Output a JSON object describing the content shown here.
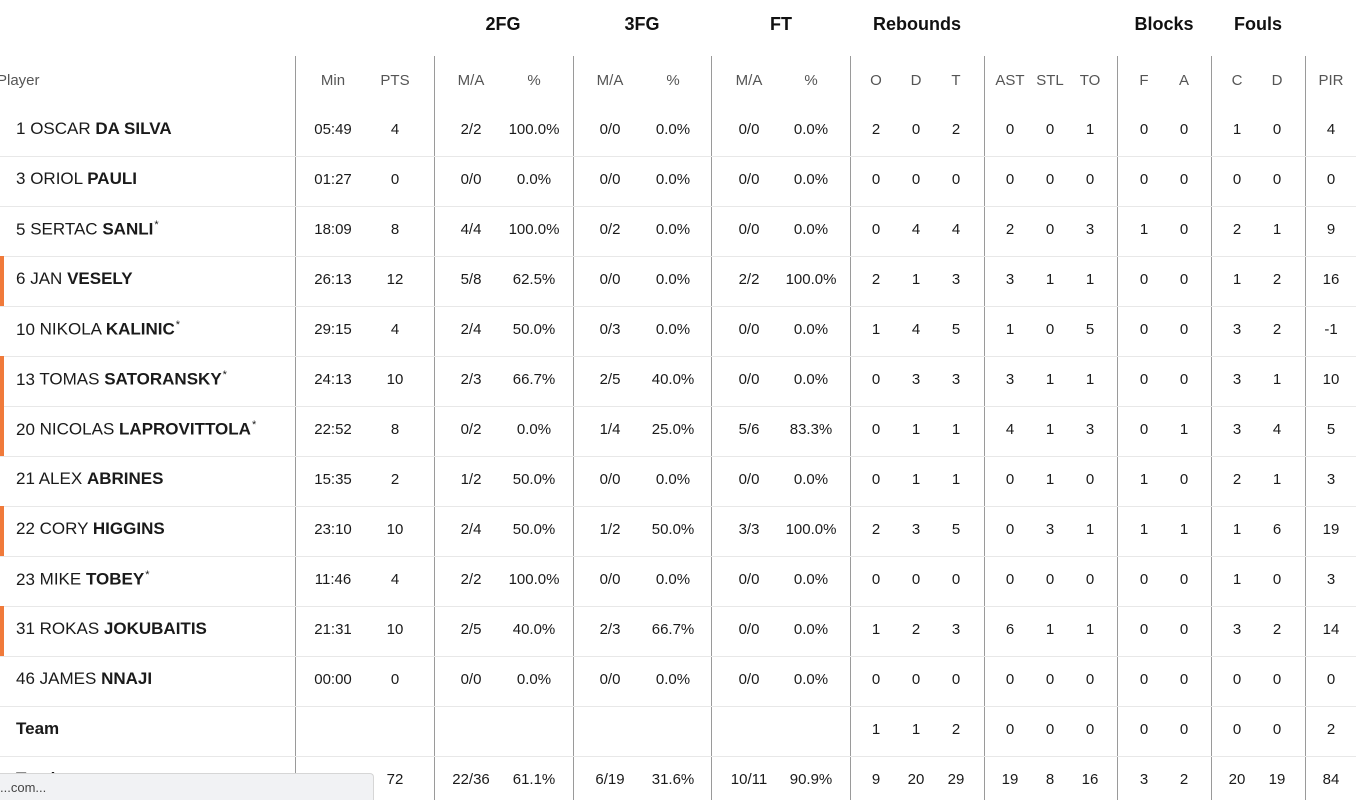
{
  "groups": [
    {
      "id": "2fg",
      "label": "2FG"
    },
    {
      "id": "3fg",
      "label": "3FG"
    },
    {
      "id": "ft",
      "label": "FT"
    },
    {
      "id": "rebounds",
      "label": "Rebounds"
    },
    {
      "id": "blocks",
      "label": "Blocks"
    },
    {
      "id": "fouls",
      "label": "Fouls"
    }
  ],
  "columns": [
    {
      "id": "player",
      "label": "Player"
    },
    {
      "id": "min",
      "label": "Min"
    },
    {
      "id": "pts",
      "label": "PTS"
    },
    {
      "id": "fg2_ma",
      "label": "M/A"
    },
    {
      "id": "fg2_pct",
      "label": "%"
    },
    {
      "id": "fg3_ma",
      "label": "M/A"
    },
    {
      "id": "fg3_pct",
      "label": "%"
    },
    {
      "id": "ft_ma",
      "label": "M/A"
    },
    {
      "id": "ft_pct",
      "label": "%"
    },
    {
      "id": "reb_o",
      "label": "O"
    },
    {
      "id": "reb_d",
      "label": "D"
    },
    {
      "id": "reb_t",
      "label": "T"
    },
    {
      "id": "ast",
      "label": "AST"
    },
    {
      "id": "stl",
      "label": "STL"
    },
    {
      "id": "to",
      "label": "TO"
    },
    {
      "id": "blk_f",
      "label": "F"
    },
    {
      "id": "blk_a",
      "label": "A"
    },
    {
      "id": "foul_c",
      "label": "C"
    },
    {
      "id": "foul_d",
      "label": "D"
    },
    {
      "id": "pir",
      "label": "PIR"
    }
  ],
  "players": [
    {
      "num": "1",
      "first": "OSCAR",
      "last": "DA SILVA",
      "starter": false,
      "highlight": false,
      "stats": [
        "05:49",
        "4",
        "2/2",
        "100.0%",
        "0/0",
        "0.0%",
        "0/0",
        "0.0%",
        "2",
        "0",
        "2",
        "0",
        "0",
        "1",
        "0",
        "0",
        "1",
        "0",
        "4"
      ]
    },
    {
      "num": "3",
      "first": "ORIOL",
      "last": "PAULI",
      "starter": false,
      "highlight": false,
      "stats": [
        "01:27",
        "0",
        "0/0",
        "0.0%",
        "0/0",
        "0.0%",
        "0/0",
        "0.0%",
        "0",
        "0",
        "0",
        "0",
        "0",
        "0",
        "0",
        "0",
        "0",
        "0",
        "0"
      ]
    },
    {
      "num": "5",
      "first": "SERTAC",
      "last": "SANLI",
      "starter": true,
      "highlight": false,
      "stats": [
        "18:09",
        "8",
        "4/4",
        "100.0%",
        "0/2",
        "0.0%",
        "0/0",
        "0.0%",
        "0",
        "4",
        "4",
        "2",
        "0",
        "3",
        "1",
        "0",
        "2",
        "1",
        "9"
      ]
    },
    {
      "num": "6",
      "first": "JAN",
      "last": "VESELY",
      "starter": false,
      "highlight": true,
      "stats": [
        "26:13",
        "12",
        "5/8",
        "62.5%",
        "0/0",
        "0.0%",
        "2/2",
        "100.0%",
        "2",
        "1",
        "3",
        "3",
        "1",
        "1",
        "0",
        "0",
        "1",
        "2",
        "16"
      ]
    },
    {
      "num": "10",
      "first": "NIKOLA",
      "last": "KALINIC",
      "starter": true,
      "highlight": false,
      "stats": [
        "29:15",
        "4",
        "2/4",
        "50.0%",
        "0/3",
        "0.0%",
        "0/0",
        "0.0%",
        "1",
        "4",
        "5",
        "1",
        "0",
        "5",
        "0",
        "0",
        "3",
        "2",
        "-1"
      ]
    },
    {
      "num": "13",
      "first": "TOMAS",
      "last": "SATORANSKY",
      "starter": true,
      "highlight": true,
      "stats": [
        "24:13",
        "10",
        "2/3",
        "66.7%",
        "2/5",
        "40.0%",
        "0/0",
        "0.0%",
        "0",
        "3",
        "3",
        "3",
        "1",
        "1",
        "0",
        "0",
        "3",
        "1",
        "10"
      ]
    },
    {
      "num": "20",
      "first": "NICOLAS",
      "last": "LAPROVITTOLA",
      "starter": true,
      "highlight": true,
      "stats": [
        "22:52",
        "8",
        "0/2",
        "0.0%",
        "1/4",
        "25.0%",
        "5/6",
        "83.3%",
        "0",
        "1",
        "1",
        "4",
        "1",
        "3",
        "0",
        "1",
        "3",
        "4",
        "5"
      ]
    },
    {
      "num": "21",
      "first": "ALEX",
      "last": "ABRINES",
      "starter": false,
      "highlight": false,
      "stats": [
        "15:35",
        "2",
        "1/2",
        "50.0%",
        "0/0",
        "0.0%",
        "0/0",
        "0.0%",
        "0",
        "1",
        "1",
        "0",
        "1",
        "0",
        "1",
        "0",
        "2",
        "1",
        "3"
      ]
    },
    {
      "num": "22",
      "first": "CORY",
      "last": "HIGGINS",
      "starter": false,
      "highlight": true,
      "stats": [
        "23:10",
        "10",
        "2/4",
        "50.0%",
        "1/2",
        "50.0%",
        "3/3",
        "100.0%",
        "2",
        "3",
        "5",
        "0",
        "3",
        "1",
        "1",
        "1",
        "1",
        "6",
        "19"
      ]
    },
    {
      "num": "23",
      "first": "MIKE",
      "last": "TOBEY",
      "starter": true,
      "highlight": false,
      "stats": [
        "11:46",
        "4",
        "2/2",
        "100.0%",
        "0/0",
        "0.0%",
        "0/0",
        "0.0%",
        "0",
        "0",
        "0",
        "0",
        "0",
        "0",
        "0",
        "0",
        "1",
        "0",
        "3"
      ]
    },
    {
      "num": "31",
      "first": "ROKAS",
      "last": "JOKUBAITIS",
      "starter": false,
      "highlight": true,
      "stats": [
        "21:31",
        "10",
        "2/5",
        "40.0%",
        "2/3",
        "66.7%",
        "0/0",
        "0.0%",
        "1",
        "2",
        "3",
        "6",
        "1",
        "1",
        "0",
        "0",
        "3",
        "2",
        "14"
      ]
    },
    {
      "num": "46",
      "first": "JAMES",
      "last": "NNAJI",
      "starter": false,
      "highlight": false,
      "stats": [
        "00:00",
        "0",
        "0/0",
        "0.0%",
        "0/0",
        "0.0%",
        "0/0",
        "0.0%",
        "0",
        "0",
        "0",
        "0",
        "0",
        "0",
        "0",
        "0",
        "0",
        "0",
        "0"
      ]
    }
  ],
  "team": {
    "label": "Team",
    "stats": [
      "",
      "",
      "",
      "",
      "",
      "",
      "",
      "",
      "1",
      "1",
      "2",
      "0",
      "0",
      "0",
      "0",
      "0",
      "0",
      "0",
      "2"
    ]
  },
  "totals": {
    "label": "Totals",
    "stats": [
      "",
      "72",
      "22/36",
      "61.1%",
      "6/19",
      "31.6%",
      "10/11",
      "90.9%",
      "9",
      "20",
      "29",
      "19",
      "8",
      "16",
      "3",
      "2",
      "20",
      "19",
      "84"
    ]
  },
  "starter_mark": "*",
  "status_bar": {
    "text": "...com..."
  },
  "colors": {
    "accent": "#f07a3a",
    "divider": "#9a9a9a",
    "row_border": "#e8e8e8"
  }
}
